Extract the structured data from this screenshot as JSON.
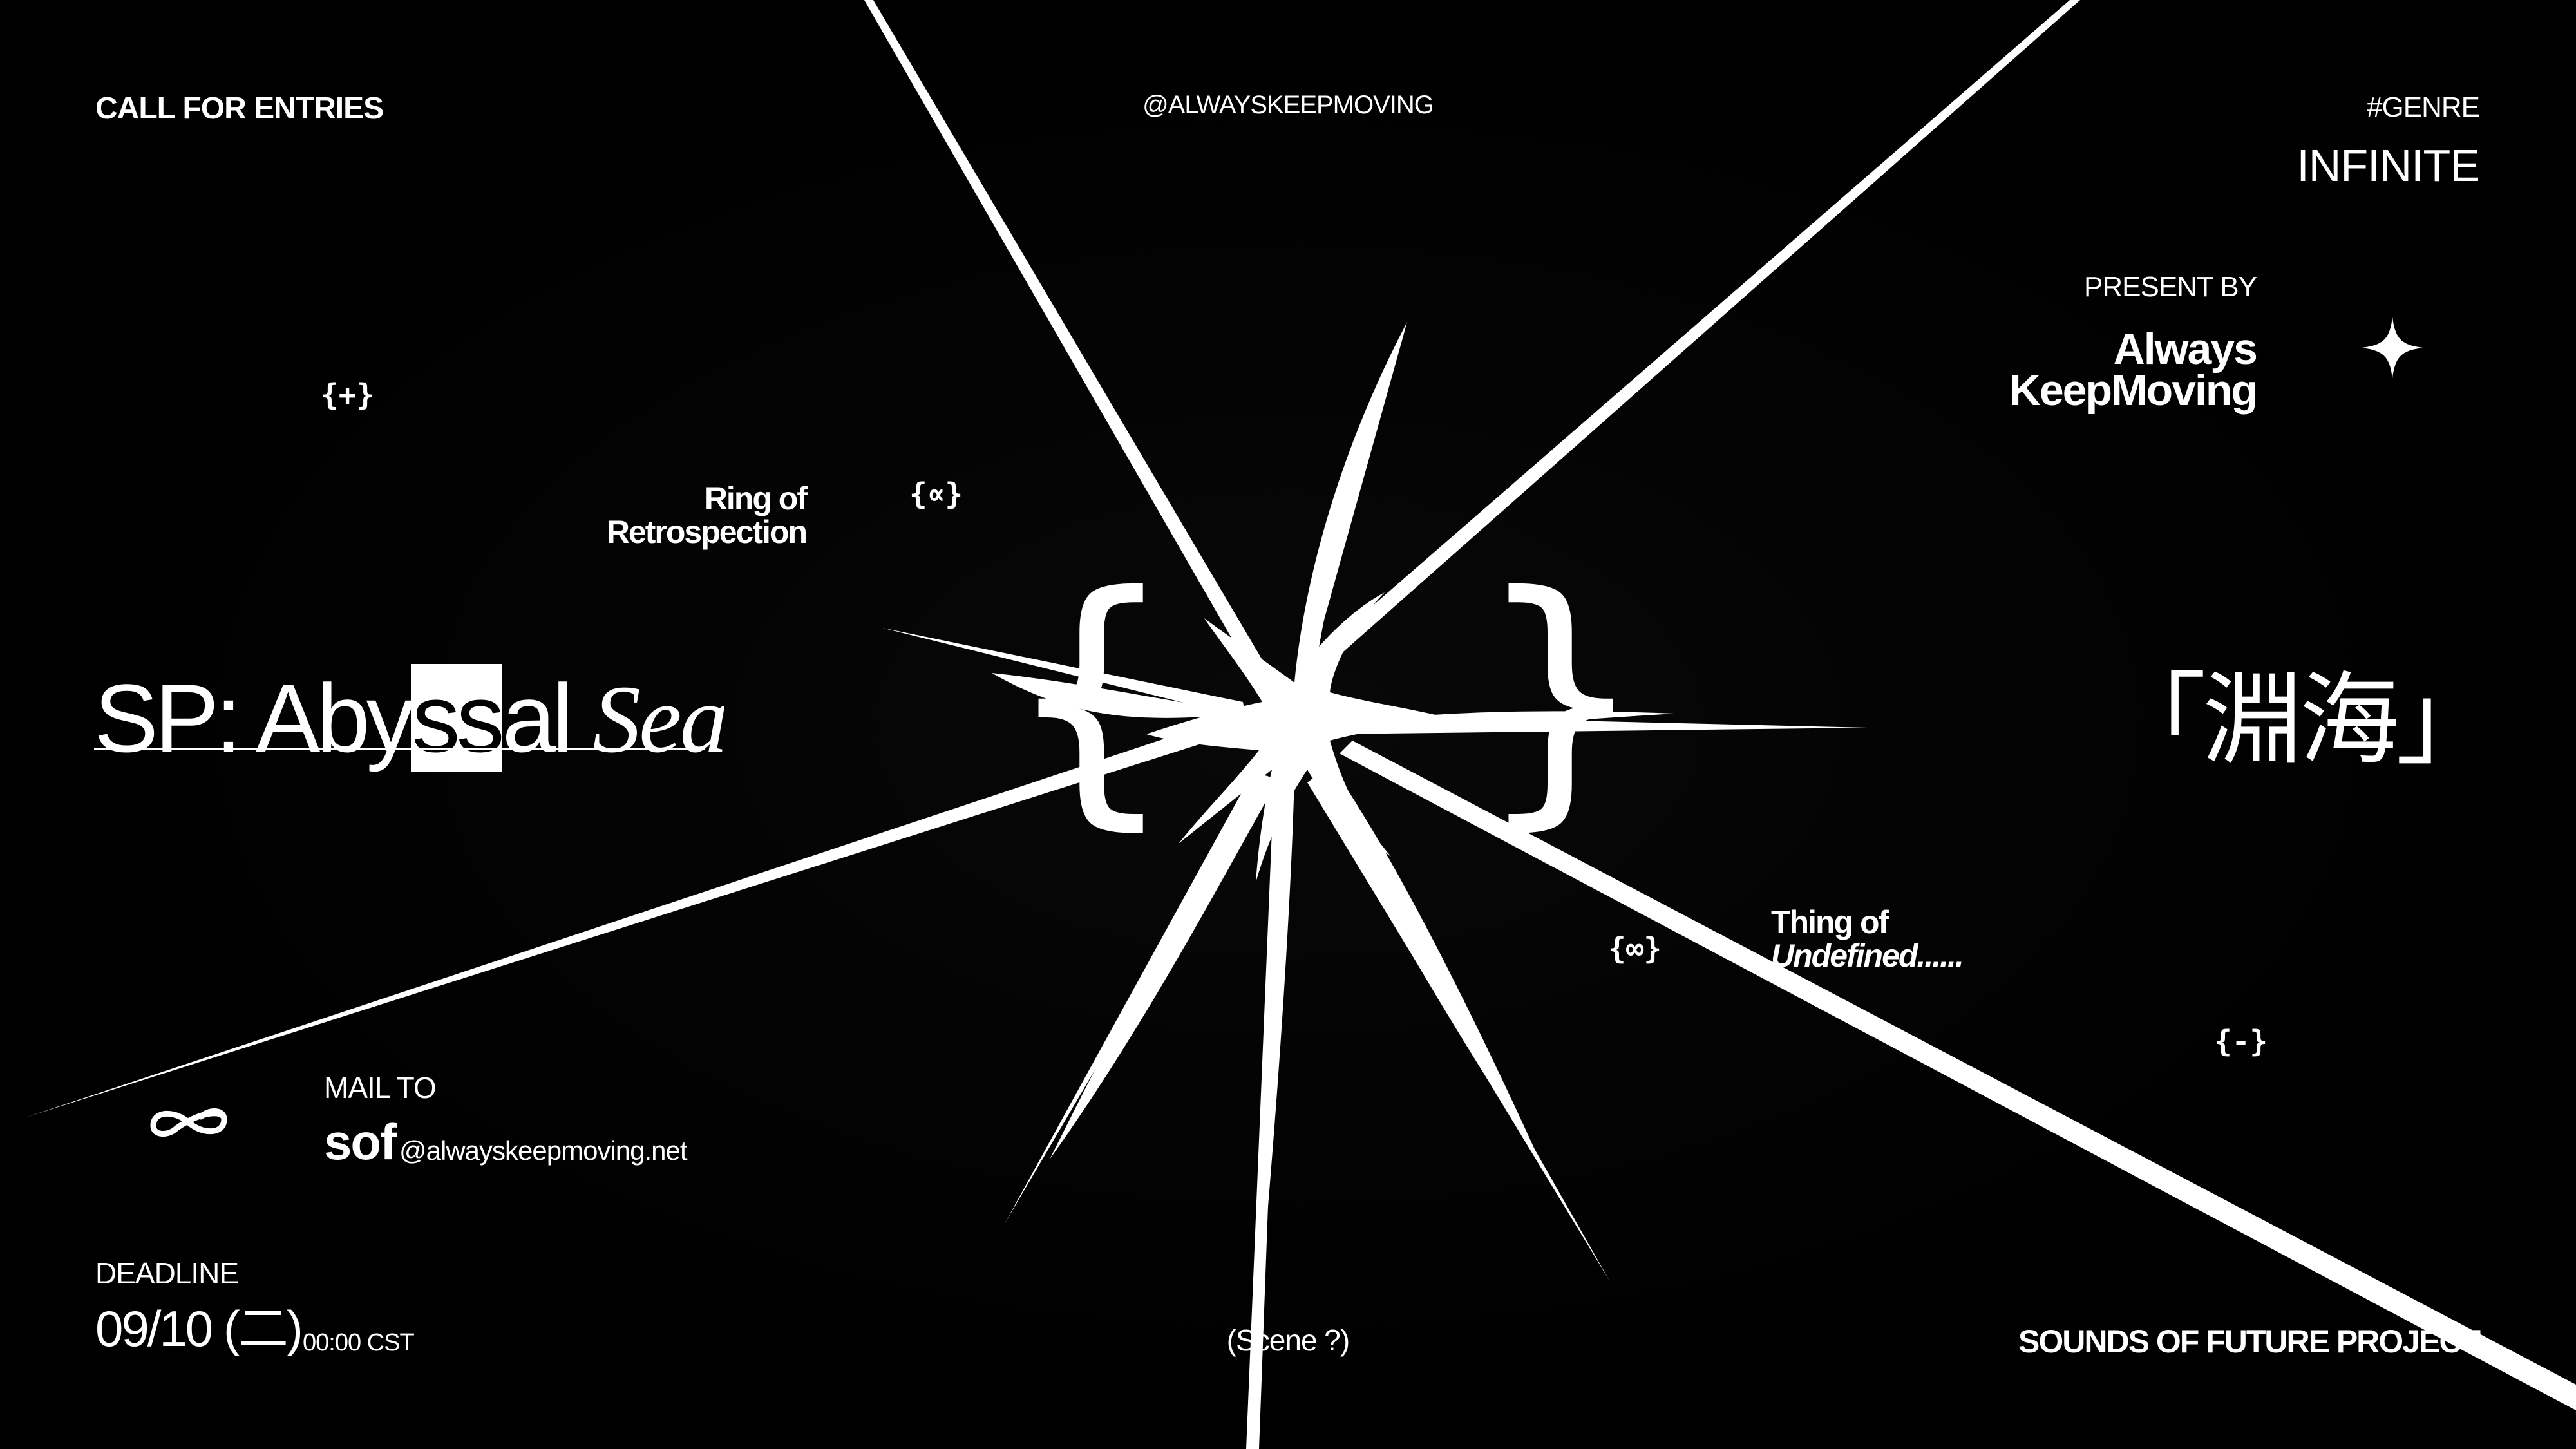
{
  "header": {
    "call_for_entries": "CALL FOR ENTRIES",
    "handle": "@ALWAYSKEEPMOVING",
    "genre_tag": "#GENRE",
    "genre_value": "INFINITE"
  },
  "presenter": {
    "label": "PRESENT BY",
    "name_line1": "Always",
    "name_line2": "KeepMoving"
  },
  "symbols": {
    "plus": "{+}",
    "proportional": "{∝}",
    "infinity": "{∞}",
    "minus": "{-}"
  },
  "labels": {
    "ring_line1": "Ring of",
    "ring_line2": "Retrospection",
    "thing_line1": "Thing of",
    "thing_line2": "Undefined......"
  },
  "title": {
    "part1": "SP: Aby",
    "highlight": "ss",
    "part2": "al ",
    "italic": "Sea",
    "cjk": "「淵海」"
  },
  "mail": {
    "label": "MAIL TO",
    "user": "sof",
    "domain": "@alwayskeepmoving.net"
  },
  "deadline": {
    "label": "DEADLINE",
    "date": "09/10 (二)",
    "time": "00:00 CST"
  },
  "footer": {
    "scene": "(Scene ?)",
    "project": "SOUNDS OF FUTURE PROJECT"
  },
  "icons": {
    "center_art": "starburst-icon",
    "presenter_mark": "four-point-star-icon",
    "mail_mark": "double-loop-icon"
  },
  "colors": {
    "background": "#000000",
    "foreground": "#ffffff"
  }
}
